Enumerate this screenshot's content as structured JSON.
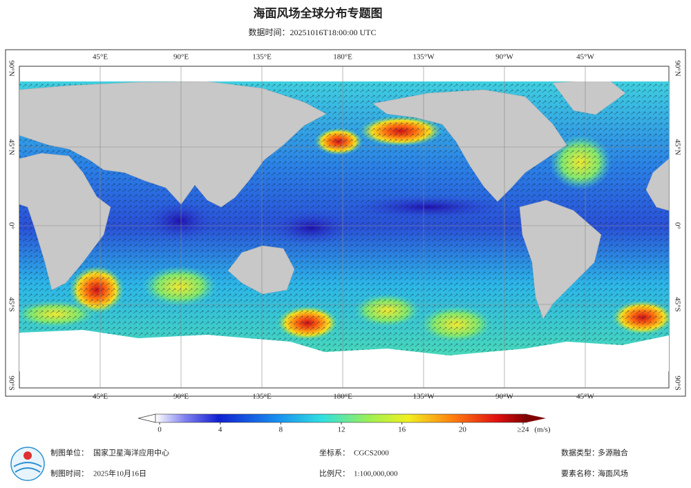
{
  "title": "海面风场全球分布专题图",
  "subtitle": "数据时间：20251016T18:00:00 UTC",
  "graticule": {
    "lon_labels": [
      "45°E",
      "90°E",
      "135°E",
      "180°E",
      "135°W",
      "90°W",
      "45°W"
    ],
    "lat_labels": [
      "90°N",
      "45°N",
      "0°",
      "45°S",
      "90°S"
    ]
  },
  "colorbar": {
    "ticks": [
      0,
      4,
      8,
      12,
      16,
      20,
      {
        "value": 24,
        "label": "≥24"
      }
    ],
    "unit": "(m/s)"
  },
  "footer": {
    "left": [
      {
        "label": "制图单位：",
        "value": "国家卫星海洋应用中心"
      },
      {
        "label": "制图时间：",
        "value": "2025年10月16日"
      }
    ],
    "middle": [
      {
        "label": "坐标系：",
        "value": "CGCS2000"
      },
      {
        "label": "比例尺：",
        "value": "1:100,000,000"
      }
    ],
    "right": [
      {
        "label": "数据类型：",
        "value": "多源融合"
      },
      {
        "label": "要素名称：",
        "value": "海面风场"
      }
    ]
  }
}
